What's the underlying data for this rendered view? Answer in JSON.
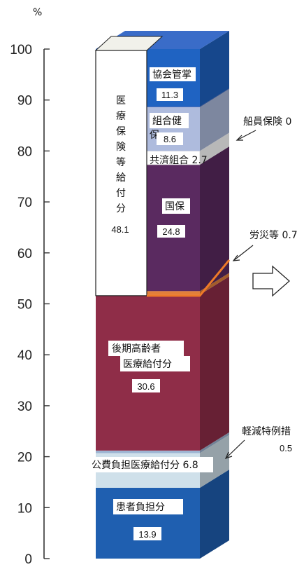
{
  "chart_data": {
    "type": "bar",
    "unit_label": "%",
    "ylim": [
      0,
      100
    ],
    "yticks": [
      "0",
      "10",
      "20",
      "30",
      "40",
      "50",
      "60",
      "70",
      "80",
      "90",
      "100"
    ],
    "stack": [
      {
        "name": "患者負担分",
        "value": 13.9,
        "label": "13.9",
        "color": "#1f5fb0"
      },
      {
        "name": "公費負担医療給付分",
        "value": 6.8,
        "label": "6.8",
        "color": "#cfe0ea"
      },
      {
        "name": "軽減特例措",
        "value": 0.5,
        "label": "0.5",
        "color": "#9db4d2"
      },
      {
        "name": "後期高齢者医療給付分",
        "value": 30.6,
        "label": "30.6",
        "color": "#8f2d48"
      },
      {
        "name": "労災等",
        "value": 0.7,
        "label": "0.7",
        "color": "#e2803a"
      },
      {
        "name": "国保",
        "value": 24.8,
        "label": "24.8",
        "color": "#5a2a60"
      },
      {
        "name": "共済組合",
        "value": 2.7,
        "label": "2.7",
        "color": "#ffffff"
      },
      {
        "name": "組合健",
        "value": 8.6,
        "label": "8.6",
        "color": "#aebbdd"
      },
      {
        "name": "船員保険",
        "value": 0.1,
        "label": "0",
        "color": "#3352a5"
      },
      {
        "name": "協会管掌",
        "value": 11.3,
        "label": "11.3",
        "color": "#1f63c2"
      }
    ],
    "bracket": {
      "label_chars": [
        "医",
        "療",
        "保",
        "険",
        "等",
        "給",
        "付",
        "分"
      ],
      "value": "48.1"
    },
    "annotations": {
      "kyokai": "協会管掌",
      "kumiai": "組合健",
      "kumiai_extra": "保",
      "kyosai": "共済組合 2.7",
      "kokuho": "国保",
      "kouki_line1": "後期高齢者",
      "kouki_line2": "医療給付分",
      "kouhi": "公費負担医療給付分 6.8",
      "kanja": "患者負担分",
      "senin": "船員保険 0",
      "rousai": "労災等 0.7",
      "keigen": "軽減特例措",
      "keigen_value": "0.5"
    }
  }
}
